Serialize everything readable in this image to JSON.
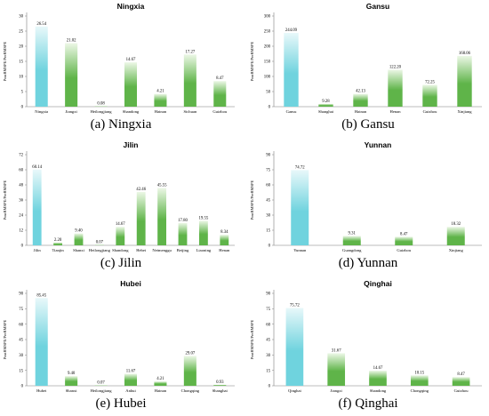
{
  "chart_data": [
    {
      "type": "bar",
      "title": "Ningxia",
      "caption_label": "(a)",
      "caption_name": "Ningxia",
      "ylabel": "PostRMSPE/PreRMSPE",
      "ylim": [
        0,
        30
      ],
      "yticks": [
        0,
        5,
        10,
        15,
        20,
        25,
        30
      ],
      "categories": [
        "Ningxia",
        "Jiangxi",
        "Heilongjiang",
        "Shandong",
        "Hainan",
        "Sichuan",
        "Guizhou"
      ],
      "values": [
        26.54,
        21.02,
        0.08,
        14.67,
        4.21,
        17.27,
        8.47
      ],
      "value_labels": [
        "26.54",
        "21.02",
        "0.08",
        "14.67",
        "4.21",
        "17.27",
        "8.47"
      ],
      "highlight_index": 0
    },
    {
      "type": "bar",
      "title": "Gansu",
      "caption_label": "(b)",
      "caption_name": "Gansu",
      "ylabel": "PostRMSPE/PreRMSPE",
      "ylim": [
        0,
        300
      ],
      "yticks": [
        0,
        50,
        100,
        150,
        200,
        250,
        300
      ],
      "categories": [
        "Gansu",
        "Shanghai",
        "Hainan",
        "Henan",
        "Guizhou",
        "Xinjiang"
      ],
      "values": [
        244.09,
        9.28,
        42.13,
        122.2,
        72.25,
        168.06
      ],
      "value_labels": [
        "244.09",
        "9.28",
        "42.13",
        "122.20",
        "72.25",
        "168.06"
      ],
      "highlight_index": 0
    },
    {
      "type": "bar",
      "title": "Jilin",
      "caption_label": "(c)",
      "caption_name": "Jilin",
      "ylabel": "PostRMSPE/PreRMSPE",
      "ylim": [
        0,
        72
      ],
      "yticks": [
        0,
        12,
        24,
        36,
        48,
        60,
        72
      ],
      "categories": [
        "Jilin",
        "Tianjin",
        "Shanxi",
        "Heilongjiang",
        "Shandong",
        "Hebei",
        "Neimenggu",
        "Beijing",
        "Liaoning",
        "Henan"
      ],
      "values": [
        60.14,
        2.2,
        9.4,
        0.07,
        14.67,
        42.46,
        45.55,
        17.8,
        19.55,
        8.34
      ],
      "value_labels": [
        "60.14",
        "2.20",
        "9.40",
        "0.07",
        "14.67",
        "42.46",
        "45.55",
        "17.80",
        "19.55",
        "8.34"
      ],
      "highlight_index": 0
    },
    {
      "type": "bar",
      "title": "Yunnan",
      "caption_label": "(d)",
      "caption_name": "Yunnan",
      "ylabel": "PostRMSPE/PreRMSPE",
      "ylim": [
        0,
        90
      ],
      "yticks": [
        0,
        15,
        30,
        45,
        60,
        75,
        90
      ],
      "categories": [
        "Yunnan",
        "Guangdong",
        "Guizhou",
        "Xinjiang"
      ],
      "values": [
        74.72,
        9.31,
        8.47,
        18.32
      ],
      "value_labels": [
        "74.72",
        "9.31",
        "8.47",
        "18.32"
      ],
      "highlight_index": 0
    },
    {
      "type": "bar",
      "title": "Hubei",
      "caption_label": "(e)",
      "caption_name": "Hubei",
      "ylabel": "PostRMSPE/PreRMSPE",
      "ylim": [
        0,
        90
      ],
      "yticks": [
        0,
        15,
        30,
        45,
        60,
        75,
        90
      ],
      "categories": [
        "Hubei",
        "Shanxi",
        "Heilongjiang",
        "Anhui",
        "Hainan",
        "Chongqing",
        "Shanghai"
      ],
      "values": [
        85.45,
        9.4,
        0.07,
        11.67,
        4.21,
        29.07,
        0.93
      ],
      "value_labels": [
        "85.45",
        "9.40",
        "0.07",
        "11.67",
        "4.21",
        "29.07",
        "0.93"
      ],
      "highlight_index": 0
    },
    {
      "type": "bar",
      "title": "Qinghai",
      "caption_label": "(f)",
      "caption_name": "Qinghai",
      "ylabel": "PostRMSPE/PreRMSPE",
      "ylim": [
        0,
        90
      ],
      "yticks": [
        0,
        15,
        30,
        45,
        60,
        75,
        90
      ],
      "categories": [
        "Qinghai",
        "Jiangxi",
        "Shandong",
        "Chongqing",
        "Guizhou"
      ],
      "values": [
        75.72,
        31.67,
        14.67,
        10.15,
        8.47
      ],
      "value_labels": [
        "75.72",
        "31.67",
        "14.67",
        "10.15",
        "8.47"
      ],
      "highlight_index": 0
    }
  ],
  "colors": {
    "highlight_top": "#e8f8fa",
    "highlight_bottom": "#6fd3de",
    "other_top": "#ecf7e6",
    "other_bottom": "#5fb449",
    "axis": "#7f7f7f",
    "text": "#000000"
  }
}
